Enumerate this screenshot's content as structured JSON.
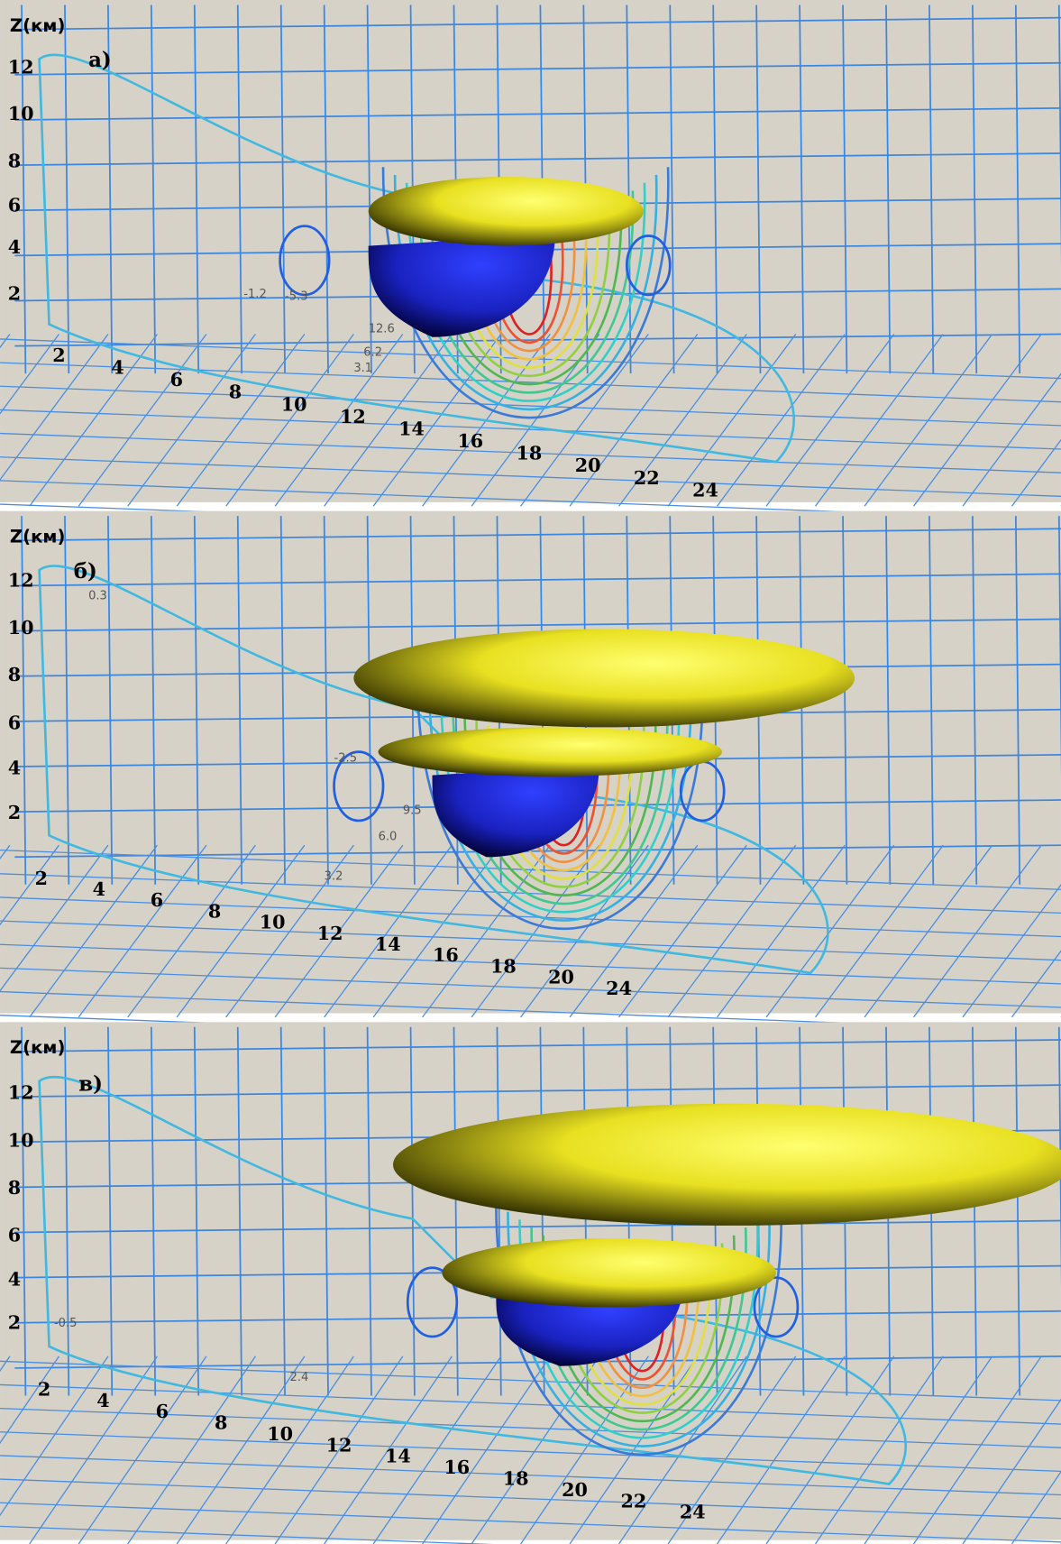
{
  "panels": [
    {
      "label": "а)",
      "z_axis_label": "Z(км)",
      "z_ticks": [
        12,
        10,
        8,
        6,
        4,
        2
      ],
      "x_ticks": [
        2,
        4,
        6,
        8,
        10,
        12,
        14,
        16,
        18,
        20,
        22,
        24
      ],
      "contour_labels": [
        "-1.2",
        "-5.3",
        "12.6",
        "6.2",
        "3.1"
      ]
    },
    {
      "label": "б)",
      "z_axis_label": "Z(км)",
      "z_ticks": [
        12,
        10,
        8,
        6,
        4,
        2
      ],
      "x_ticks": [
        2,
        4,
        6,
        8,
        10,
        12,
        14,
        16,
        18,
        20,
        24
      ],
      "contour_labels": [
        "-2.5",
        "9.5",
        "6.0",
        "3.2",
        "0.3"
      ]
    },
    {
      "label": "в)",
      "z_axis_label": "Z(км)",
      "z_ticks": [
        12,
        10,
        8,
        6,
        4,
        2
      ],
      "x_ticks": [
        2,
        4,
        6,
        8,
        10,
        12,
        14,
        16,
        18,
        20,
        22,
        24
      ],
      "contour_labels": [
        "-0.5",
        "2.4"
      ]
    }
  ]
}
